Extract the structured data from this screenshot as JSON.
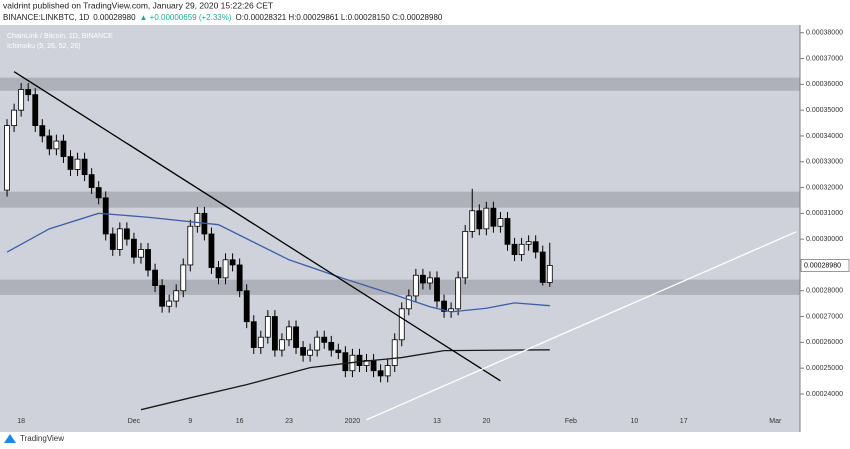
{
  "header": {
    "line1": "valdrint published on TradingView.com, January 29, 2020 15:22:26 CET",
    "symbol": "BINANCE:LINKBTC, 1D",
    "price": "0.00028980",
    "change": "▲ +0.00000659 (+2.33%)",
    "ohlc": "O:0.00028321 H:0.00029861 L:0.00028150 C:0.00028980"
  },
  "watermark": "TradingView",
  "chart_data": {
    "type": "candlestick",
    "title": "ChainLink / Bitcoin, 1D, BINANCE",
    "subtitle": "Ichimoku (9, 26, 52, 26)",
    "xlim": [
      -1,
      112.5
    ],
    "xticks": [
      {
        "value": 2,
        "label": "18"
      },
      {
        "value": 18,
        "label": "Dec"
      },
      {
        "value": 26,
        "label": "9"
      },
      {
        "value": 33,
        "label": "16"
      },
      {
        "value": 40,
        "label": "23"
      },
      {
        "value": 49,
        "label": "2020"
      },
      {
        "value": 61,
        "label": "13"
      },
      {
        "value": 68,
        "label": "20"
      },
      {
        "value": 80,
        "label": "Feb"
      },
      {
        "value": 89,
        "label": "10"
      },
      {
        "value": 96,
        "label": "17"
      },
      {
        "value": 109,
        "label": "Mar"
      }
    ],
    "ylim": [
      0.0002268,
      0.000383
    ],
    "yticks": [
      {
        "value": 0.00038,
        "label": "0.00038000"
      },
      {
        "value": 0.00037,
        "label": "0.00037000"
      },
      {
        "value": 0.00036,
        "label": "0.00036000"
      },
      {
        "value": 0.00035,
        "label": "0.00035000"
      },
      {
        "value": 0.00034,
        "label": "0.00034000"
      },
      {
        "value": 0.00033,
        "label": "0.00033000"
      },
      {
        "value": 0.00032,
        "label": "0.00032000"
      },
      {
        "value": 0.00031,
        "label": "0.00031000"
      },
      {
        "value": 0.0003,
        "label": "0.00030000"
      },
      {
        "value": 0.00028,
        "label": "0.00028000"
      },
      {
        "value": 0.00027,
        "label": "0.00027000"
      },
      {
        "value": 0.00026,
        "label": "0.00026000"
      },
      {
        "value": 0.00025,
        "label": "0.00025000"
      },
      {
        "value": 0.00024,
        "label": "0.00024000"
      }
    ],
    "last_price": {
      "value": 0.0002898,
      "label": "0.00028980"
    },
    "up_color": "#ffffff",
    "down_color": "#000000",
    "background": "#cfd2db",
    "zones": [
      [
        0.0003575,
        0.0003626
      ],
      [
        0.0003122,
        0.0003184
      ],
      [
        0.0002784,
        0.0002843
      ]
    ],
    "zone_color": "#a8abb3",
    "open": [
      0.000319,
      0.000344,
      0.00035,
      0.000358,
      0.000356,
      0.000344,
      0.00034,
      0.000335,
      0.000338,
      0.000332,
      0.000327,
      0.000331,
      0.000325,
      0.00032,
      0.000316,
      0.000302,
      0.000296,
      0.000304,
      0.0003,
      0.000293,
      0.000296,
      0.000288,
      0.000282,
      0.000274,
      0.000276,
      0.00028,
      0.00029,
      0.000305,
      0.00031,
      0.000302,
      0.000289,
      0.000285,
      0.000292,
      0.00029,
      0.00028,
      0.000268,
      0.000258,
      0.000262,
      0.00027,
      0.000257,
      0.000261,
      0.000266,
      0.000258,
      0.000255,
      0.000257,
      0.000262,
      0.00026,
      0.000257,
      0.000256,
      0.000249,
      0.000255,
      0.000251,
      0.000253,
      0.000249,
      0.000247,
      0.000251,
      0.000261,
      0.000273,
      0.000278,
      0.000286,
      0.000283,
      0.000285,
      0.000276,
      0.000272,
      0.000273,
      0.000285,
      0.000303,
      0.000311,
      0.000304,
      0.000312,
      0.000305,
      0.000308,
      0.000298,
      0.000294,
      0.000298,
      0.000299,
      0.000295,
      0.00028321
    ],
    "high": [
      0.0003465,
      0.0003525,
      0.0003605,
      0.0003605,
      0.0003585,
      0.0003465,
      0.0003425,
      0.0003405,
      0.0003405,
      0.0003345,
      0.0003335,
      0.0003335,
      0.0003275,
      0.0003225,
      0.0003185,
      0.0003045,
      0.0003065,
      0.0003065,
      0.0003025,
      0.0002985,
      0.0002985,
      0.0002905,
      0.0002845,
      0.0002785,
      0.0002825,
      0.0002925,
      0.0003075,
      0.0003125,
      0.0003125,
      0.0003045,
      0.0002915,
      0.0002945,
      0.0002945,
      0.0002925,
      0.0002825,
      0.0002705,
      0.0002645,
      0.0002725,
      0.0002725,
      0.0002635,
      0.0002685,
      0.0002685,
      0.0002605,
      0.0002595,
      0.0002645,
      0.0002645,
      0.0002625,
      0.0002595,
      0.0002585,
      0.0002575,
      0.0002575,
      0.0002555,
      0.0002555,
      0.0002515,
      0.0002535,
      0.0002635,
      0.0002755,
      0.0002805,
      0.0002885,
      0.0002885,
      0.0002875,
      0.0002875,
      0.0002785,
      0.0002755,
      0.0002875,
      0.0003055,
      0.0003195,
      0.0003135,
      0.0003145,
      0.0003145,
      0.0003105,
      0.0003105,
      0.0003005,
      0.0003005,
      0.0003015,
      0.0003015,
      0.0002975,
      0.00029861
    ],
    "low": [
      0.0003165,
      0.0003415,
      0.0003475,
      0.0003535,
      0.0003415,
      0.0003375,
      0.0003325,
      0.0003325,
      0.0003295,
      0.0003245,
      0.0003245,
      0.0003225,
      0.0003175,
      0.0003135,
      0.0002995,
      0.0002935,
      0.0002935,
      0.0002975,
      0.0002905,
      0.0002905,
      0.0002855,
      0.0002795,
      0.0002715,
      0.0002715,
      0.0002735,
      0.0002775,
      0.0002875,
      0.0003025,
      0.0002995,
      0.0002865,
      0.0002825,
      0.0002825,
      0.0002875,
      0.0002775,
      0.0002655,
      0.0002555,
      0.0002555,
      0.0002595,
      0.0002545,
      0.0002545,
      0.0002585,
      0.0002555,
      0.0002525,
      0.0002525,
      0.0002545,
      0.0002575,
      0.0002545,
      0.0002535,
      0.0002465,
      0.0002465,
      0.0002485,
      0.0002485,
      0.0002465,
      0.0002445,
      0.0002445,
      0.0002485,
      0.0002585,
      0.0002705,
      0.0002755,
      0.0002805,
      0.0002805,
      0.0002735,
      0.0002695,
      0.0002695,
      0.0002705,
      0.0002825,
      0.0003005,
      0.0003015,
      0.0003015,
      0.0003025,
      0.0003025,
      0.0002955,
      0.0002915,
      0.0002915,
      0.0002955,
      0.0002925,
      0.000282,
      0.0002815
    ],
    "close": [
      0.000344,
      0.00035,
      0.000358,
      0.000356,
      0.000344,
      0.00034,
      0.000335,
      0.000338,
      0.000332,
      0.000327,
      0.000331,
      0.000325,
      0.00032,
      0.000316,
      0.000302,
      0.000296,
      0.000304,
      0.0003,
      0.000293,
      0.000296,
      0.000288,
      0.000282,
      0.000274,
      0.000276,
      0.00028,
      0.00029,
      0.000305,
      0.00031,
      0.000302,
      0.000289,
      0.000285,
      0.000292,
      0.00029,
      0.00028,
      0.000268,
      0.000258,
      0.000262,
      0.00027,
      0.000257,
      0.000261,
      0.000266,
      0.000258,
      0.000255,
      0.000257,
      0.000262,
      0.00026,
      0.000257,
      0.000256,
      0.000249,
      0.000255,
      0.000251,
      0.000253,
      0.000249,
      0.000247,
      0.000251,
      0.000261,
      0.000273,
      0.000278,
      0.000286,
      0.000283,
      0.000285,
      0.000276,
      0.000272,
      0.000273,
      0.000285,
      0.000303,
      0.000311,
      0.000304,
      0.000312,
      0.000305,
      0.000308,
      0.000298,
      0.000294,
      0.000298,
      0.000299,
      0.000295,
      0.00028321,
      0.0002898
    ],
    "lines": [
      {
        "color": "#3d5ea8",
        "x": [
          0,
          6,
          13,
          20,
          30,
          40,
          48,
          55,
          60,
          63,
          68,
          72,
          77
        ],
        "values": [
          0.000295,
          0.000304,
          0.00031,
          0.0003085,
          0.0003056,
          0.000292,
          0.0002845,
          0.0002784,
          0.0002738,
          0.0002718,
          0.0002732,
          0.0002753,
          0.0002742
        ]
      },
      {
        "color": "#1a1a1a",
        "x": [
          19,
          26,
          34,
          43,
          50,
          56,
          62,
          77
        ],
        "values": [
          0.0002339,
          0.0002385,
          0.0002436,
          0.0002502,
          0.0002525,
          0.0002541,
          0.0002568,
          0.0002571
        ]
      },
      {
        "color": "#000000",
        "x": [
          1,
          70
        ],
        "values": [
          0.0003649,
          0.0002451
        ]
      },
      {
        "color": "#ffffff",
        "x": [
          51,
          112
        ],
        "values": [
          0.00023,
          0.0003029
        ]
      }
    ]
  }
}
